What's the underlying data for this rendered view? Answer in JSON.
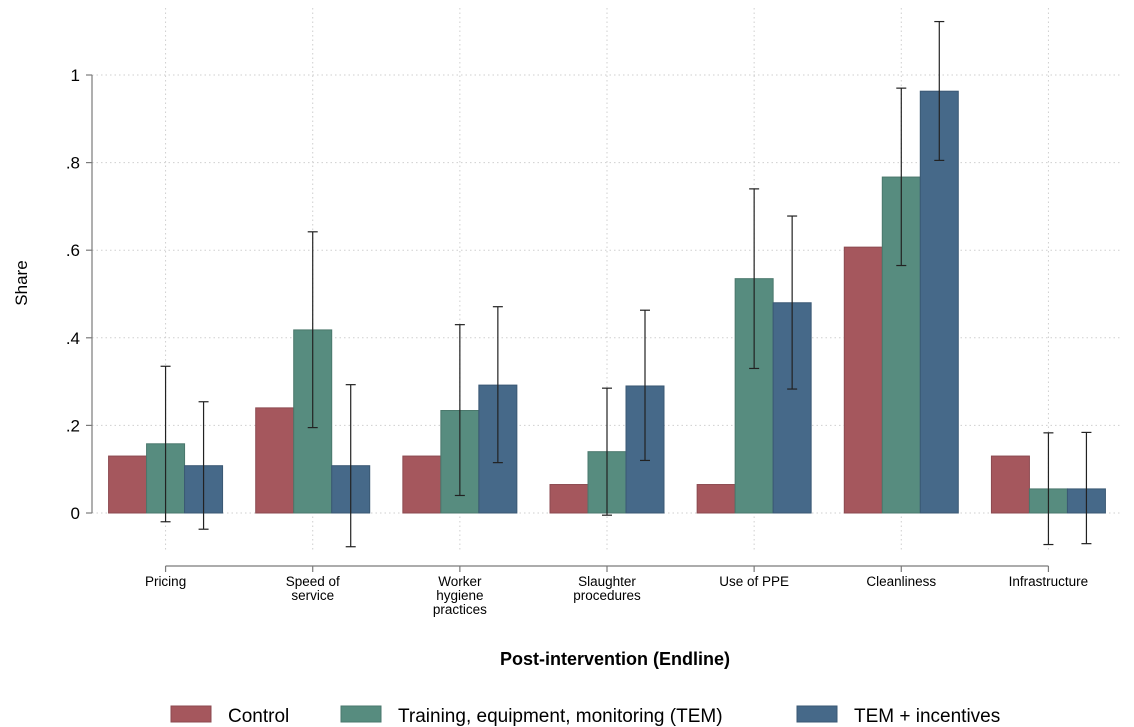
{
  "chart_data": {
    "type": "bar",
    "title": "",
    "xlabel": "Post-intervention (Endline)",
    "ylabel": "Share",
    "ylim": [
      -0.09,
      1.15
    ],
    "yticks": [
      0,
      0.2,
      0.4,
      0.6,
      0.8,
      1
    ],
    "ytick_labels": [
      "0",
      ".2",
      ".4",
      ".6",
      ".8",
      "1"
    ],
    "grid": true,
    "legend_position": "bottom",
    "categories": [
      [
        "Pricing"
      ],
      [
        "Speed of",
        "service"
      ],
      [
        "Worker",
        "hygiene",
        "practices"
      ],
      [
        "Slaughter",
        "procedures"
      ],
      [
        "Use of PPE"
      ],
      [
        "Cleanliness"
      ],
      [
        "Infrastructure"
      ]
    ],
    "series": [
      {
        "name": "Control",
        "color": "#a5575d",
        "edge": "#8c4a50",
        "values": [
          0.13,
          0.24,
          0.13,
          0.065,
          0.065,
          0.607,
          0.13
        ],
        "ci": [
          null,
          null,
          null,
          null,
          null,
          null,
          null
        ]
      },
      {
        "name": "Training, equipment, monitoring (TEM)",
        "color": "#578c7f",
        "edge": "#4a776c",
        "values": [
          0.158,
          0.418,
          0.234,
          0.14,
          0.535,
          0.767,
          0.055
        ],
        "ci": [
          [
            -0.02,
            0.335
          ],
          [
            0.195,
            0.642
          ],
          [
            0.04,
            0.43
          ],
          [
            -0.005,
            0.285
          ],
          [
            0.33,
            0.74
          ],
          [
            0.565,
            0.97
          ],
          [
            -0.072,
            0.183
          ]
        ]
      },
      {
        "name": "TEM + incentives",
        "color": "#466989",
        "edge": "#3a5874",
        "values": [
          0.108,
          0.108,
          0.292,
          0.29,
          0.48,
          0.963,
          0.055
        ],
        "ci": [
          [
            -0.037,
            0.254
          ],
          [
            -0.077,
            0.293
          ],
          [
            0.115,
            0.471
          ],
          [
            0.12,
            0.463
          ],
          [
            0.283,
            0.678
          ],
          [
            0.805,
            1.122
          ],
          [
            -0.07,
            0.184
          ]
        ]
      }
    ]
  }
}
